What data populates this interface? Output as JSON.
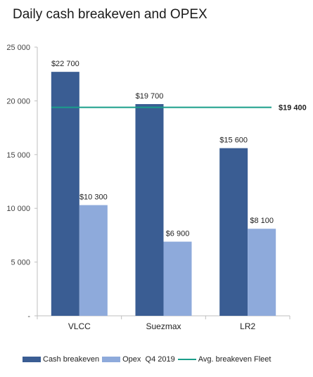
{
  "chart_data": {
    "type": "bar",
    "title": "Daily cash breakeven and OPEX",
    "categories": [
      "VLCC",
      "Suezmax",
      "LR2"
    ],
    "series": [
      {
        "name": "Cash breakeven",
        "values": [
          22700,
          19700,
          15600
        ],
        "labels": [
          "$22 700",
          "$19 700",
          "$15 600"
        ],
        "color": "#3a5d93"
      },
      {
        "name": "Opex  Q4 2019",
        "values": [
          10300,
          6900,
          8100
        ],
        "labels": [
          "$10 300",
          "$6 900",
          "$8 100"
        ],
        "color": "#8eaadb"
      }
    ],
    "reference_line": {
      "name": "Avg. breakeven Fleet",
      "value": 19400,
      "label": "$19 400",
      "color": "#1a9e8a"
    },
    "y_ticks": [
      {
        "value": 0,
        "label": "-"
      },
      {
        "value": 5000,
        "label": "5 000"
      },
      {
        "value": 10000,
        "label": "10 000"
      },
      {
        "value": 15000,
        "label": "15 000"
      },
      {
        "value": 20000,
        "label": "20 000"
      },
      {
        "value": 25000,
        "label": "25 000"
      }
    ],
    "ylim": [
      0,
      25000
    ],
    "grid": false,
    "legend_position": "bottom"
  }
}
